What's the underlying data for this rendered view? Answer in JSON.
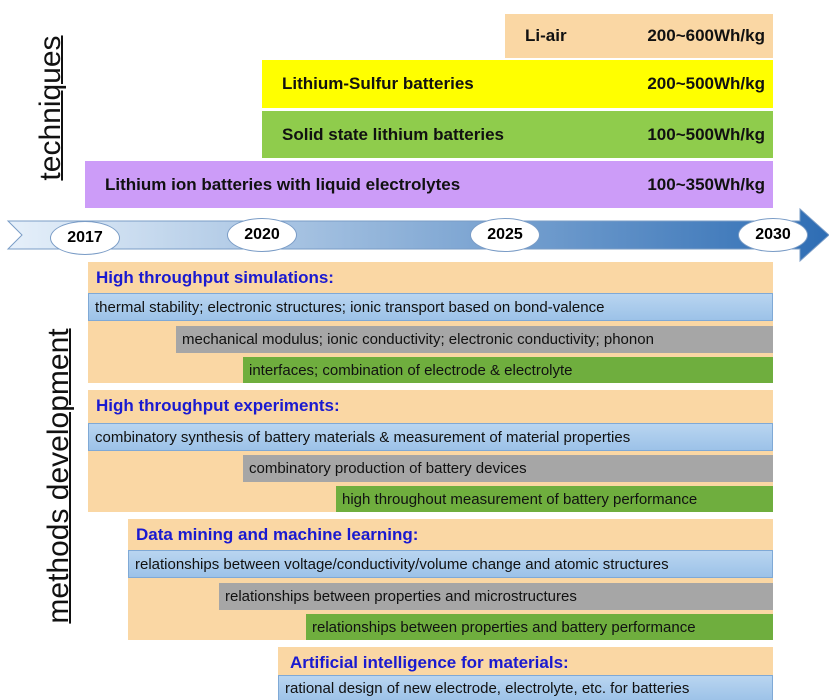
{
  "techniques_label": "techniques",
  "methods_label": "methods development",
  "techniques": [
    {
      "name": "Li-air",
      "energy": "200~600Wh/kg"
    },
    {
      "name": "Lithium-Sulfur batteries",
      "energy": "200~500Wh/kg"
    },
    {
      "name": "Solid state lithium batteries",
      "energy": "100~500Wh/kg"
    },
    {
      "name": "Lithium ion batteries with liquid electrolytes",
      "energy": "100~350Wh/kg"
    }
  ],
  "years": [
    "2017",
    "2020",
    "2025",
    "2030"
  ],
  "methods": [
    {
      "title": "High throughput simulations:",
      "items": [
        "thermal stability; electronic structures; ionic transport based on bond-valence",
        "mechanical modulus; ionic conductivity; electronic conductivity; phonon",
        "interfaces; combination of electrode & electrolyte"
      ]
    },
    {
      "title": "High throughput experiments:",
      "items": [
        "combinatory synthesis of battery materials & measurement of material properties",
        "combinatory production of battery devices",
        "high throughout measurement of battery performance"
      ]
    },
    {
      "title": "Data mining and machine learning:",
      "items": [
        "relationships between voltage/conductivity/volume change and atomic structures",
        "relationships between properties and microstructures",
        "relationships between properties and battery performance"
      ]
    },
    {
      "title": "Artificial intelligence for materials:",
      "items": [
        "rational design of new electrode, electrolyte, etc. for batteries"
      ]
    }
  ]
}
